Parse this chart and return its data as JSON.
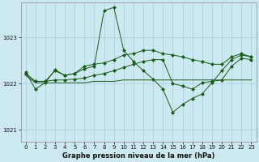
{
  "title": "Graphe pression niveau de la mer (hPa)",
  "bg_color": "#cce8f0",
  "grid_color": "#aaccdd",
  "line_color": "#1a5c1a",
  "ylim": [
    1020.75,
    1023.75
  ],
  "yticks": [
    1021,
    1022,
    1023
  ],
  "xlim": [
    -0.5,
    23.5
  ],
  "xticks": [
    0,
    1,
    2,
    3,
    4,
    5,
    6,
    7,
    8,
    9,
    10,
    11,
    12,
    13,
    14,
    15,
    16,
    17,
    18,
    19,
    20,
    21,
    22,
    23
  ],
  "series1": [
    1022.25,
    1021.88,
    1022.02,
    1022.3,
    1022.18,
    1022.22,
    1022.32,
    1022.38,
    1023.58,
    1023.65,
    1022.72,
    1022.48,
    1022.28,
    1022.1,
    1021.88,
    1021.38,
    1021.55,
    1021.68,
    1021.78,
    1022.02,
    1022.28,
    1022.52,
    1022.62,
    1022.58
  ],
  "series2": [
    1022.22,
    1022.05,
    1022.05,
    1022.08,
    1022.08,
    1022.1,
    1022.12,
    1022.18,
    1022.22,
    1022.28,
    1022.35,
    1022.42,
    1022.48,
    1022.52,
    1022.52,
    1022.0,
    1021.95,
    1021.88,
    1022.02,
    1022.05,
    1022.08,
    1022.38,
    1022.55,
    1022.52
  ],
  "series3": [
    1022.18,
    1022.02,
    1022.02,
    1022.02,
    1022.02,
    1022.02,
    1022.02,
    1022.05,
    1022.05,
    1022.05,
    1022.08,
    1022.08,
    1022.08,
    1022.08,
    1022.08,
    1022.08,
    1022.08,
    1022.08,
    1022.08,
    1022.08,
    1022.08,
    1022.08,
    1022.08,
    1022.08
  ],
  "series4": [
    1022.22,
    1022.05,
    1022.05,
    1022.28,
    1022.18,
    1022.22,
    1022.38,
    1022.42,
    1022.45,
    1022.52,
    1022.62,
    1022.65,
    1022.72,
    1022.72,
    1022.65,
    1022.62,
    1022.58,
    1022.52,
    1022.48,
    1022.42,
    1022.42,
    1022.58,
    1022.65,
    1022.58
  ]
}
